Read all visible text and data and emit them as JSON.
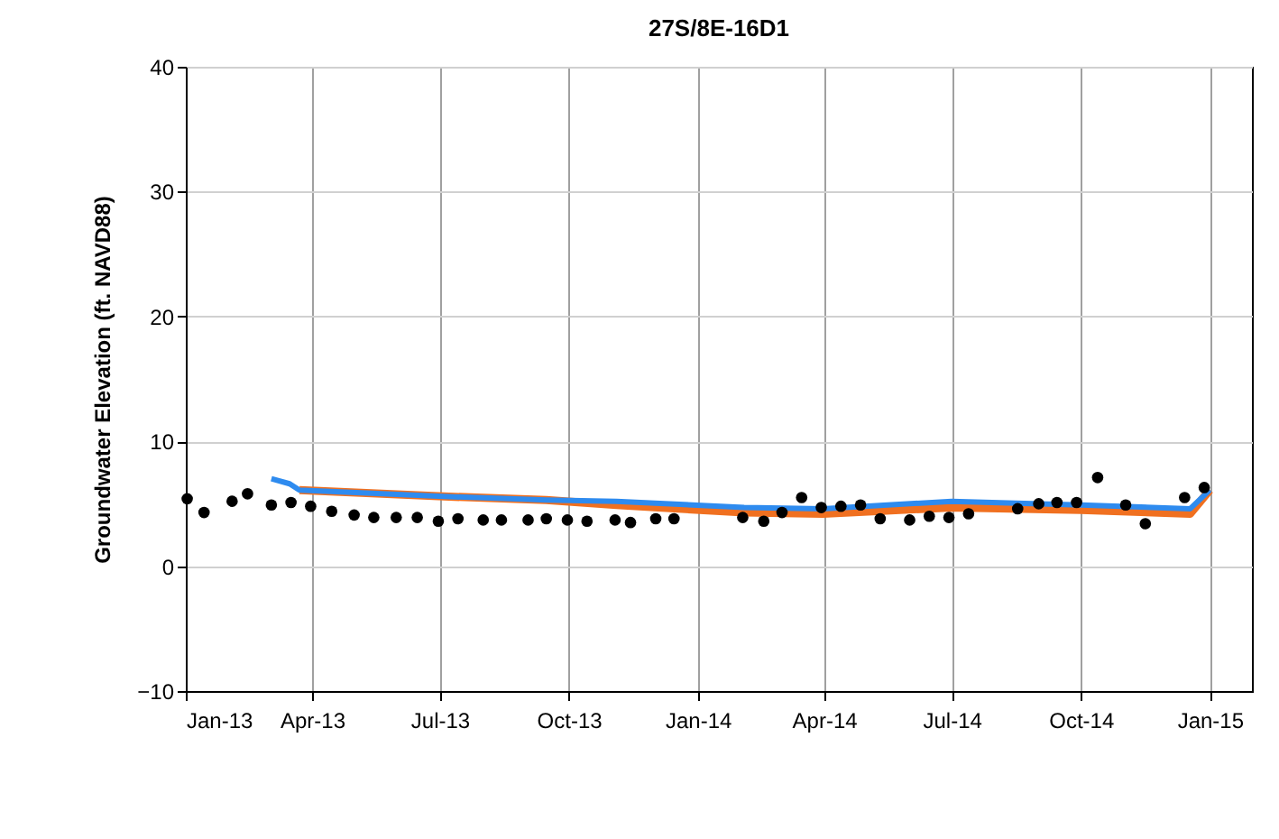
{
  "chart_data": {
    "type": "scatter",
    "title": "27S/8E-16D1",
    "ylabel": "Groundwater Elevation (ft. NAVD88)",
    "xlim": [
      "2013-01-01",
      "2015-01-31"
    ],
    "xticks": [
      {
        "value": "2013-01-01",
        "label": "Jan-13"
      },
      {
        "value": "2013-04-01",
        "label": "Apr-13"
      },
      {
        "value": "2013-07-01",
        "label": "Jul-13"
      },
      {
        "value": "2013-10-01",
        "label": "Oct-13"
      },
      {
        "value": "2014-01-01",
        "label": "Jan-14"
      },
      {
        "value": "2014-04-01",
        "label": "Apr-14"
      },
      {
        "value": "2014-07-01",
        "label": "Jul-14"
      },
      {
        "value": "2014-10-01",
        "label": "Oct-14"
      },
      {
        "value": "2015-01-01",
        "label": "Jan-15"
      }
    ],
    "ylim": [
      -10,
      40
    ],
    "yticks": [
      -10,
      0,
      10,
      20,
      30,
      40
    ],
    "grid": true,
    "series": [
      {
        "type": "line",
        "marker": "none",
        "color": "#f07020",
        "x": [
          "2013-03-23",
          "2013-06-30",
          "2013-09-15",
          "2013-11-04",
          "2014-02-03",
          "2014-03-31",
          "2014-07-01",
          "2014-10-01",
          "2014-12-18",
          "2015-01-01"
        ],
        "values": [
          6.1,
          5.6,
          5.3,
          4.9,
          4.3,
          4.2,
          4.7,
          4.5,
          4.2,
          6.1
        ]
      },
      {
        "type": "line",
        "marker": "none",
        "color": "#2e8bef",
        "x": [
          "2013-03-03",
          "2013-03-16",
          "2013-03-23",
          "2013-06-30",
          "2013-09-15",
          "2013-11-04",
          "2014-02-03",
          "2014-03-31",
          "2014-07-01",
          "2014-10-01",
          "2014-12-18",
          "2015-01-01"
        ],
        "values": [
          7.0,
          6.6,
          6.1,
          5.6,
          5.3,
          5.2,
          4.7,
          4.6,
          5.2,
          4.9,
          4.6,
          6.1
        ]
      },
      {
        "marker": "circle",
        "color": "#000000",
        "x": [
          "2013-01-02",
          "2013-01-14",
          "2013-02-03",
          "2013-02-14",
          "2013-03-03",
          "2013-03-17",
          "2013-03-31",
          "2013-04-15",
          "2013-05-01",
          "2013-05-15",
          "2013-05-31",
          "2013-06-15",
          "2013-06-30",
          "2013-07-14",
          "2013-08-01",
          "2013-08-14",
          "2013-09-02",
          "2013-09-15",
          "2013-09-30",
          "2013-10-14",
          "2013-11-03",
          "2013-11-14",
          "2013-12-02",
          "2013-12-15",
          "2014-02-02",
          "2014-02-17",
          "2014-03-02",
          "2014-03-16",
          "2014-03-30",
          "2014-04-13",
          "2014-04-27",
          "2014-05-11",
          "2014-06-01",
          "2014-06-15",
          "2014-06-29",
          "2014-07-13",
          "2014-08-17",
          "2014-09-01",
          "2014-09-14",
          "2014-09-28",
          "2014-10-13",
          "2014-11-02",
          "2014-11-16",
          "2014-12-14",
          "2014-12-28"
        ],
        "values": [
          5.4,
          4.3,
          5.2,
          5.8,
          4.9,
          5.1,
          4.8,
          4.4,
          4.1,
          3.9,
          3.9,
          3.9,
          3.6,
          3.8,
          3.7,
          3.7,
          3.7,
          3.8,
          3.7,
          3.6,
          3.7,
          3.5,
          3.8,
          3.8,
          3.9,
          3.6,
          4.3,
          5.5,
          4.7,
          4.8,
          4.9,
          3.8,
          3.7,
          4.0,
          3.9,
          4.2,
          4.6,
          5.0,
          5.1,
          5.1,
          7.1,
          4.9,
          3.4,
          5.5,
          6.3
        ]
      }
    ]
  }
}
